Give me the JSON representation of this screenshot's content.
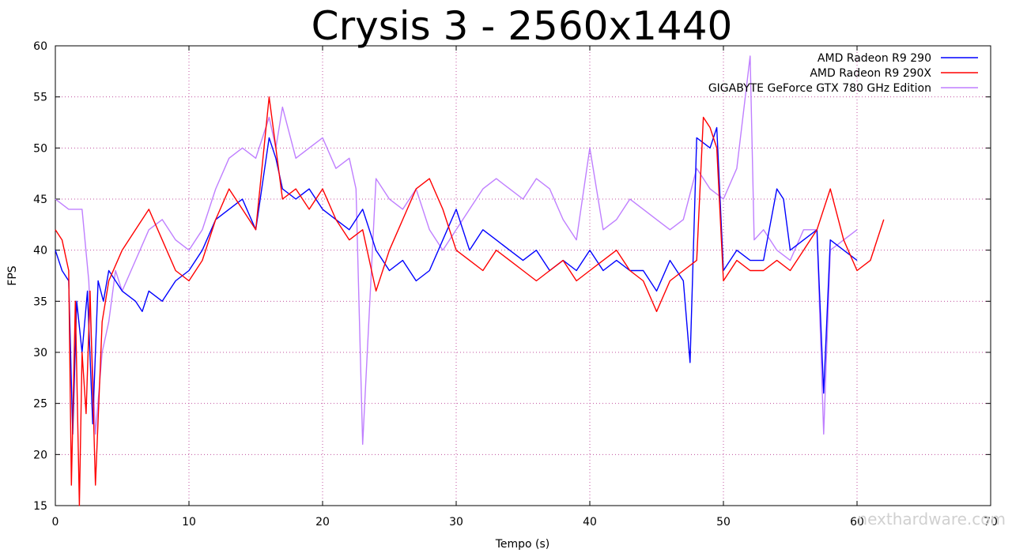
{
  "chart_data": {
    "type": "line",
    "title": "Crysis 3 - 2560x1440",
    "xlabel": "Tempo (s)",
    "ylabel": "FPS",
    "xlim": [
      0,
      70
    ],
    "ylim": [
      15,
      60
    ],
    "x_ticks": [
      0,
      10,
      20,
      30,
      40,
      50,
      60,
      70
    ],
    "y_ticks": [
      15,
      20,
      25,
      30,
      35,
      40,
      45,
      50,
      55,
      60
    ],
    "grid": true,
    "legend_position": "top-right",
    "watermark": "nexthardware.com",
    "series": [
      {
        "name": "AMD Radeon R9 290",
        "color": "#0000ff",
        "x": [
          0,
          0.5,
          1,
          1.3,
          1.6,
          2,
          2.4,
          2.8,
          3.2,
          3.6,
          4,
          5,
          6,
          6.5,
          7,
          8,
          9,
          10,
          11,
          12,
          13,
          14,
          15,
          16,
          16.5,
          17,
          18,
          19,
          20,
          21,
          22,
          23,
          24,
          25,
          26,
          27,
          28,
          29,
          30,
          31,
          32,
          33,
          34,
          35,
          36,
          37,
          38,
          39,
          40,
          41,
          42,
          43,
          44,
          45,
          46,
          47,
          47.5,
          48,
          49,
          49.5,
          50,
          51,
          52,
          53,
          54,
          54.5,
          55,
          56,
          57,
          57.5,
          58,
          59,
          60
        ],
        "y": [
          40,
          38,
          37,
          22,
          35,
          30,
          36,
          23,
          37,
          35,
          38,
          36,
          35,
          34,
          36,
          35,
          37,
          38,
          40,
          43,
          44,
          45,
          42,
          51,
          49,
          46,
          45,
          46,
          44,
          43,
          42,
          44,
          40,
          38,
          39,
          37,
          38,
          41,
          44,
          40,
          42,
          41,
          40,
          39,
          40,
          38,
          39,
          38,
          40,
          38,
          39,
          38,
          38,
          36,
          39,
          37,
          29,
          51,
          50,
          52,
          38,
          40,
          39,
          39,
          46,
          45,
          40,
          41,
          42,
          26,
          41,
          40,
          39
        ]
      },
      {
        "name": "AMD Radeon R9 290X",
        "color": "#ff0000",
        "x": [
          0,
          0.5,
          1,
          1.2,
          1.5,
          1.8,
          2,
          2.3,
          2.6,
          3,
          3.5,
          4,
          5,
          6,
          7,
          8,
          9,
          10,
          11,
          12,
          13,
          14,
          15,
          16,
          16.5,
          17,
          18,
          19,
          20,
          21,
          22,
          23,
          24,
          25,
          26,
          27,
          28,
          29,
          30,
          31,
          32,
          33,
          34,
          35,
          36,
          37,
          38,
          39,
          40,
          41,
          42,
          43,
          44,
          45,
          46,
          47,
          48,
          48.5,
          49,
          49.5,
          50,
          51,
          52,
          53,
          54,
          55,
          56,
          57,
          58,
          59,
          60,
          61,
          62
        ],
        "y": [
          42,
          41,
          38,
          17,
          35,
          15,
          30,
          24,
          36,
          17,
          33,
          37,
          40,
          42,
          44,
          41,
          38,
          37,
          39,
          43,
          46,
          44,
          42,
          55,
          50,
          45,
          46,
          44,
          46,
          43,
          41,
          42,
          36,
          40,
          43,
          46,
          47,
          44,
          40,
          39,
          38,
          40,
          39,
          38,
          37,
          38,
          39,
          37,
          38,
          39,
          40,
          38,
          37,
          34,
          37,
          38,
          39,
          53,
          52,
          50,
          37,
          39,
          38,
          38,
          39,
          38,
          40,
          42,
          46,
          41,
          38,
          39,
          43
        ]
      },
      {
        "name": "GIGABYTE GeForce GTX 780 GHz Edition",
        "color": "#bf7fff",
        "x": [
          0,
          1,
          2,
          2.5,
          3,
          3.5,
          4,
          4.5,
          5,
          6,
          7,
          8,
          9,
          10,
          11,
          12,
          13,
          14,
          15,
          16,
          16.5,
          17,
          18,
          19,
          20,
          21,
          22,
          22.5,
          23,
          24,
          25,
          26,
          27,
          28,
          29,
          30,
          31,
          32,
          33,
          34,
          35,
          36,
          37,
          38,
          39,
          40,
          41,
          42,
          43,
          44,
          45,
          46,
          47,
          48,
          49,
          50,
          51,
          52,
          52.3,
          53,
          54,
          55,
          56,
          57,
          57.5,
          58,
          59,
          60
        ],
        "y": [
          45,
          44,
          44,
          37,
          22,
          30,
          33,
          38,
          36,
          39,
          42,
          43,
          41,
          40,
          42,
          46,
          49,
          50,
          49,
          53,
          50,
          54,
          49,
          50,
          51,
          48,
          49,
          46,
          21,
          47,
          45,
          44,
          46,
          42,
          40,
          42,
          44,
          46,
          47,
          46,
          45,
          47,
          46,
          43,
          41,
          50,
          42,
          43,
          45,
          44,
          43,
          42,
          43,
          48,
          46,
          45,
          48,
          59,
          41,
          42,
          40,
          39,
          42,
          42,
          22,
          40,
          41,
          42
        ]
      }
    ]
  }
}
